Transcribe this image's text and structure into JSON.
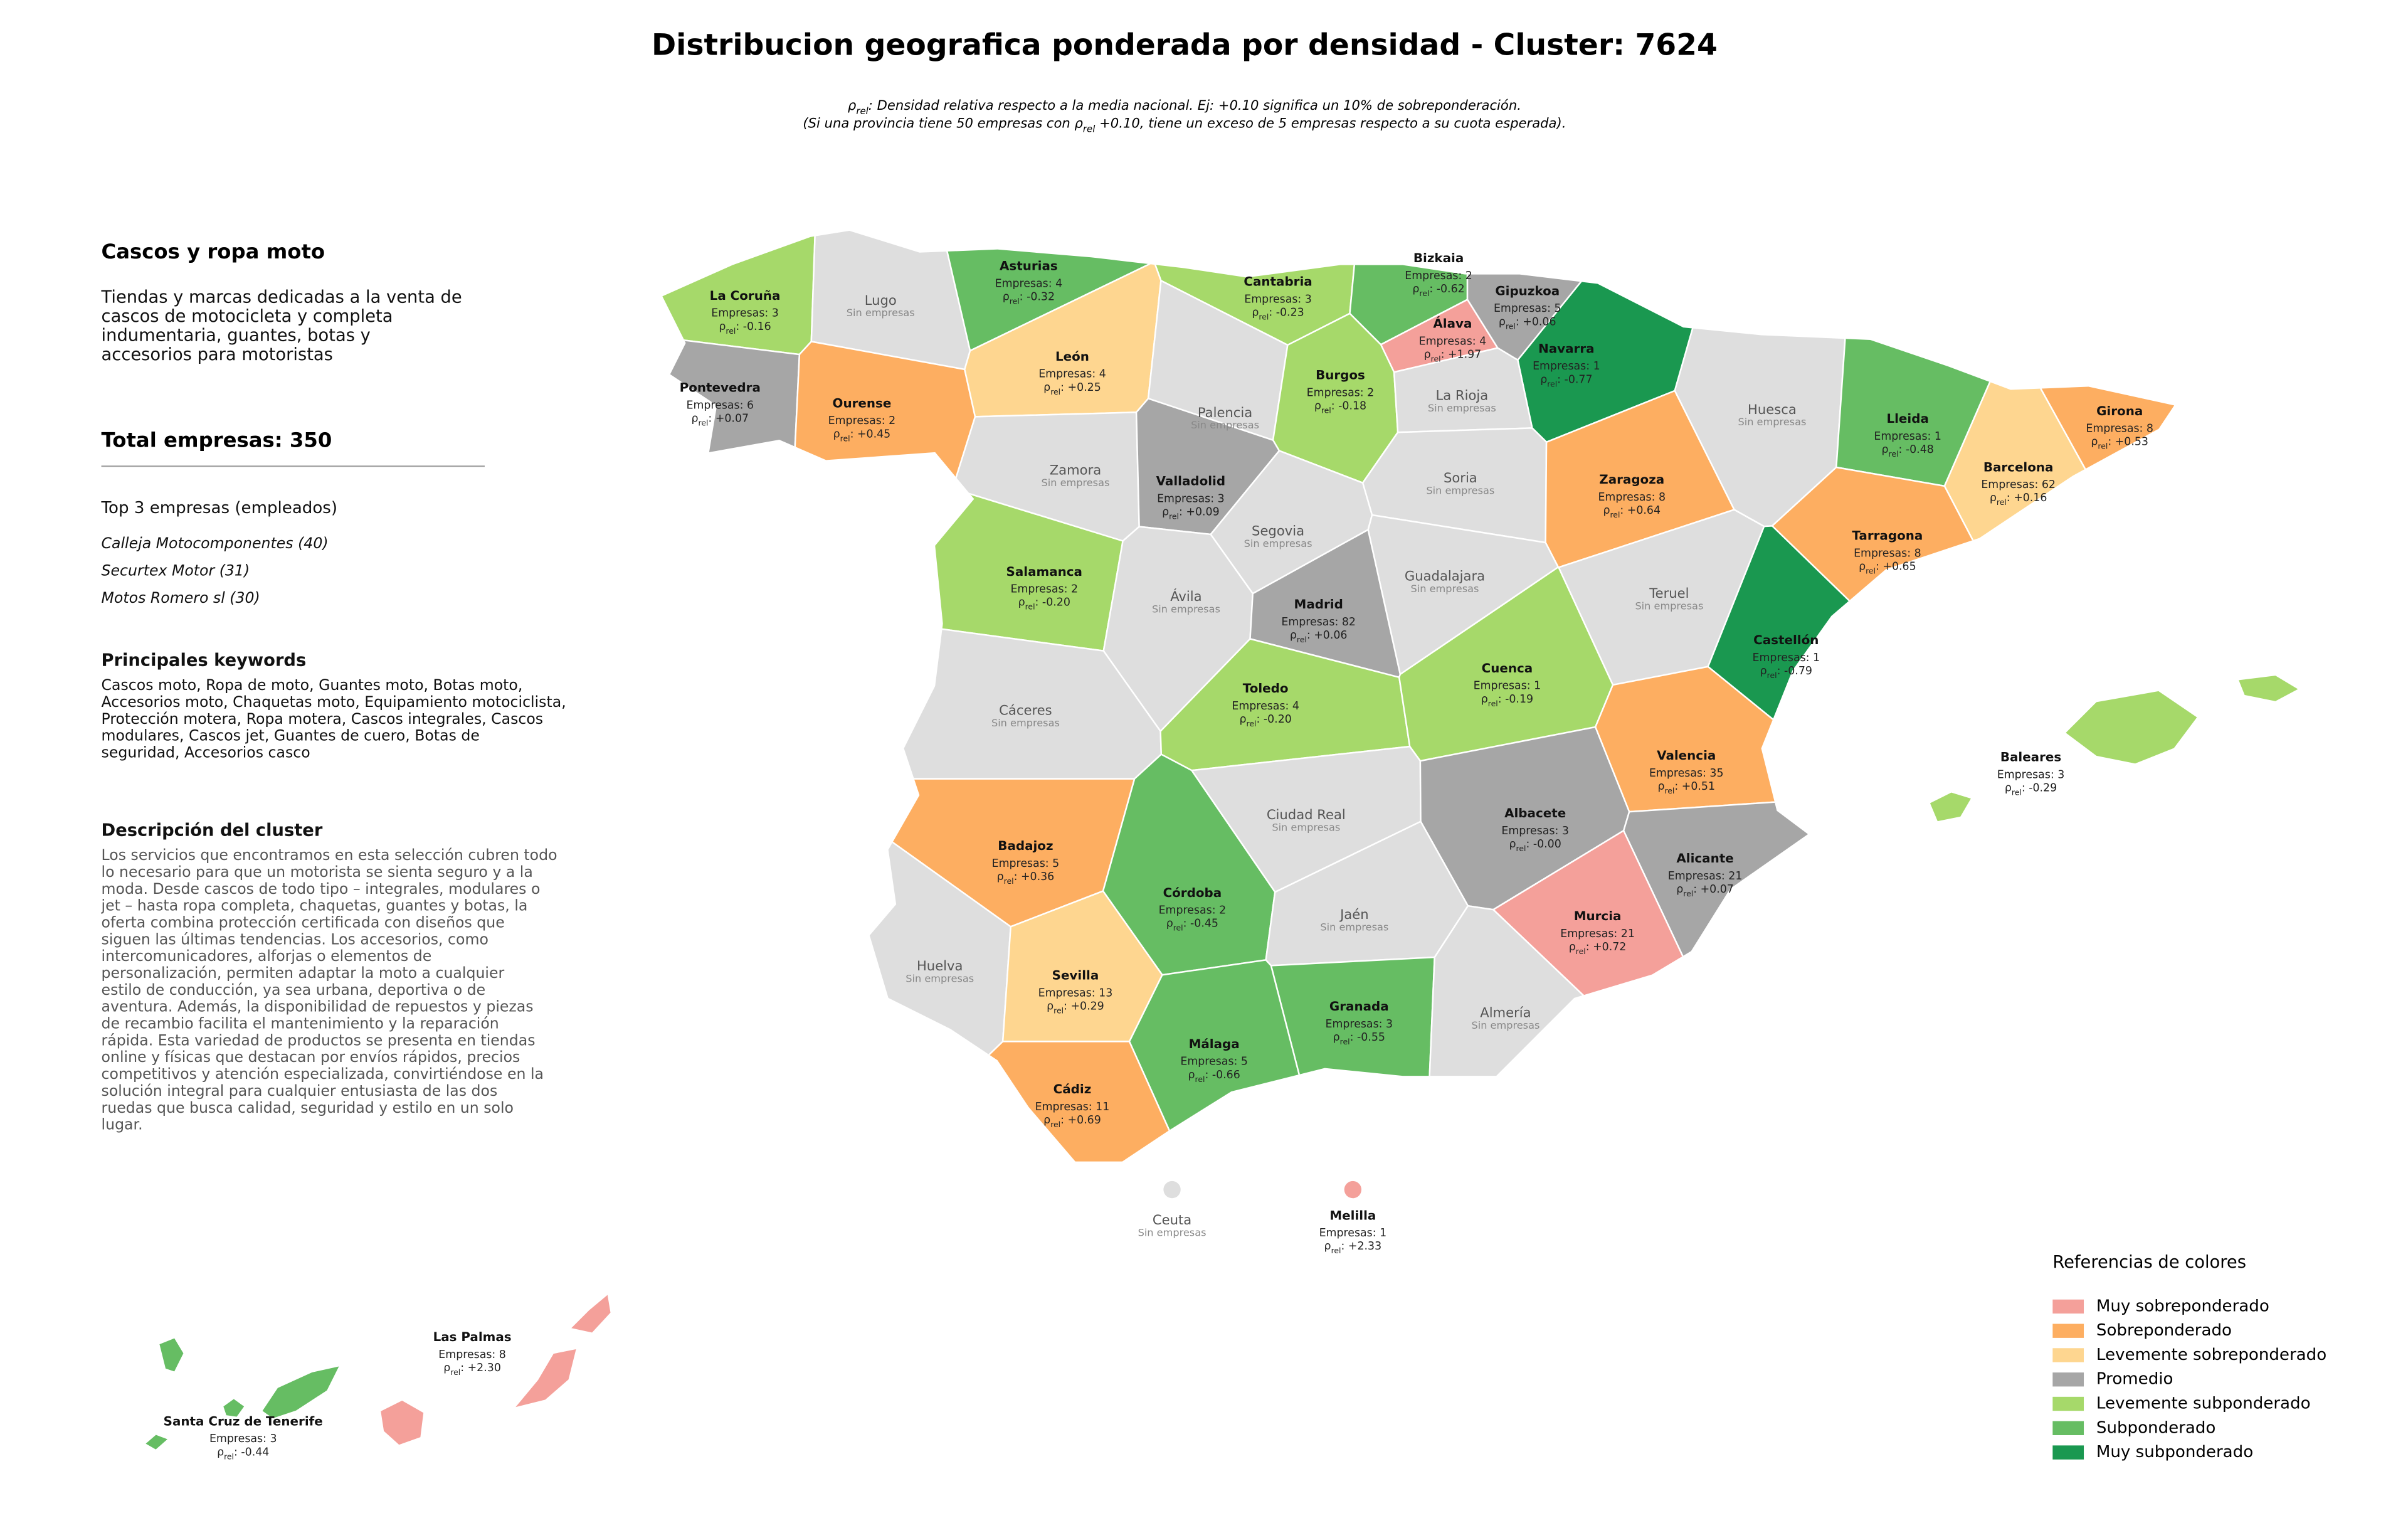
{
  "title": "Distribucion geografica ponderada por densidad - Cluster: 7624",
  "subtitle": [
    [
      {
        "text": "ρ"
      },
      {
        "text": "rel",
        "sub": true
      },
      {
        "text": ": Densidad relativa respecto a la media nacional. Ej: +0.10 significa un 10% de sobreponderación."
      }
    ],
    [
      {
        "text": "(Si una provincia tiene 50 empresas con ρ"
      },
      {
        "text": "rel",
        "sub": true
      },
      {
        "text": " +0.10, tiene un exceso de 5 empresas respecto a su cuota esperada)."
      }
    ]
  ],
  "sidebar": {
    "heading": "Cascos y ropa moto",
    "summary": [
      "Tiendas y marcas dedicadas a la venta de",
      "cascos de motocicleta y completa",
      "indumentaria, guantes, botas y",
      "accesorios para motoristas"
    ],
    "total": "Total empresas: 350",
    "top_title": "Top 3 empresas (empleados)",
    "top": [
      "Calleja Motocomponentes (40)",
      "Securtex Motor (31)",
      "Motos Romero sl (30)"
    ],
    "keywords_title": "Principales keywords",
    "keywords": [
      "Cascos moto, Ropa de moto, Guantes moto, Botas moto,",
      "Accesorios moto, Chaquetas moto, Equipamiento motociclista,",
      "Protección motera, Ropa motera, Cascos integrales, Cascos",
      "modulares, Cascos jet, Guantes de cuero, Botas de",
      "seguridad, Accesorios casco"
    ],
    "description_title": "Descripción del cluster",
    "description": [
      "Los servicios que encontramos en esta selección cubren todo",
      "lo necesario para que un motorista se sienta seguro y a la",
      "moda. Desde cascos de todo tipo – integrales, modulares o",
      "jet – hasta ropa completa, chaquetas, guantes y botas, la",
      "oferta combina protección certificada con diseños que",
      "siguen las últimas tendencias. Los accesorios, como",
      "intercomunicadores, alforjas o elementos de",
      "personalización, permiten adaptar la moto a cualquier",
      "estilo de conducción, ya sea urbana, deportiva o de",
      "aventura. Además, la disponibilidad de repuestos y piezas",
      "de recambio facilita el mantenimiento y la reparación",
      "rápida. Esta variedad de productos se presenta en tiendas",
      "online y físicas que destacan por envíos rápidos, precios",
      "competitivos y atención especializada, convirtiéndose en la",
      "solución integral para cualquier entusiasta de las dos",
      "ruedas que busca calidad, seguridad y estilo en un solo",
      "lugar."
    ]
  },
  "rho": {
    "symbol": "ρ",
    "subscript": "rel",
    "separator": ": "
  },
  "no_data_color": "#dedede",
  "provinces": [
    {
      "name": "La Coruña",
      "companies": "Empresas: 3",
      "rho": "-0.16",
      "color": "#a6d96a"
    },
    {
      "name": "Lugo",
      "status": "Sin empresas"
    },
    {
      "name": "Asturias",
      "companies": "Empresas: 4",
      "rho": "-0.32",
      "color": "#66bd63"
    },
    {
      "name": "Cantabria",
      "companies": "Empresas: 3",
      "rho": "-0.23",
      "color": "#a6d96a"
    },
    {
      "name": "Bizkaia",
      "companies": "Empresas: 2",
      "rho": "-0.62",
      "color": "#66bd63"
    },
    {
      "name": "Gipuzkoa",
      "companies": "Empresas: 5",
      "rho": "+0.06",
      "color": "#a6a6a6"
    },
    {
      "name": "Álava",
      "companies": "Empresas: 4",
      "rho": "+1.97",
      "color": "#f4a09a"
    },
    {
      "name": "Navarra",
      "companies": "Empresas: 1",
      "rho": "-0.77",
      "color": "#1a9850"
    },
    {
      "name": "Pontevedra",
      "companies": "Empresas: 6",
      "rho": "+0.07",
      "color": "#a6a6a6"
    },
    {
      "name": "Ourense",
      "companies": "Empresas: 2",
      "rho": "+0.45",
      "color": "#fdae61"
    },
    {
      "name": "León",
      "companies": "Empresas: 4",
      "rho": "+0.25",
      "color": "#fed690"
    },
    {
      "name": "Palencia",
      "status": "Sin empresas"
    },
    {
      "name": "Burgos",
      "companies": "Empresas: 2",
      "rho": "-0.18",
      "color": "#a6d96a"
    },
    {
      "name": "La Rioja",
      "status": "Sin empresas"
    },
    {
      "name": "Huesca",
      "status": "Sin empresas"
    },
    {
      "name": "Lleida",
      "companies": "Empresas: 1",
      "rho": "-0.48",
      "color": "#66bd63"
    },
    {
      "name": "Girona",
      "companies": "Empresas: 8",
      "rho": "+0.53",
      "color": "#fdae61"
    },
    {
      "name": "Barcelona",
      "companies": "Empresas: 62",
      "rho": "+0.16",
      "color": "#fed690"
    },
    {
      "name": "Zamora",
      "status": "Sin empresas"
    },
    {
      "name": "Valladolid",
      "companies": "Empresas: 3",
      "rho": "+0.09",
      "color": "#a6a6a6"
    },
    {
      "name": "Soria",
      "status": "Sin empresas"
    },
    {
      "name": "Zaragoza",
      "companies": "Empresas: 8",
      "rho": "+0.64",
      "color": "#fdae61"
    },
    {
      "name": "Tarragona",
      "companies": "Empresas: 8",
      "rho": "+0.65",
      "color": "#fdae61"
    },
    {
      "name": "Segovia",
      "status": "Sin empresas"
    },
    {
      "name": "Salamanca",
      "companies": "Empresas: 2",
      "rho": "-0.20",
      "color": "#a6d96a"
    },
    {
      "name": "Guadalajara",
      "status": "Sin empresas"
    },
    {
      "name": "Teruel",
      "status": "Sin empresas"
    },
    {
      "name": "Ávila",
      "status": "Sin empresas"
    },
    {
      "name": "Madrid",
      "companies": "Empresas: 82",
      "rho": "+0.06",
      "color": "#a6a6a6"
    },
    {
      "name": "Castellón",
      "companies": "Empresas: 1",
      "rho": "-0.79",
      "color": "#1a9850"
    },
    {
      "name": "Cáceres",
      "status": "Sin empresas"
    },
    {
      "name": "Toledo",
      "companies": "Empresas: 4",
      "rho": "-0.20",
      "color": "#a6d96a"
    },
    {
      "name": "Cuenca",
      "companies": "Empresas: 1",
      "rho": "-0.19",
      "color": "#a6d96a"
    },
    {
      "name": "Valencia",
      "companies": "Empresas: 35",
      "rho": "+0.51",
      "color": "#fdae61"
    },
    {
      "name": "Ciudad Real",
      "status": "Sin empresas"
    },
    {
      "name": "Albacete",
      "companies": "Empresas: 3",
      "rho": "-0.00",
      "color": "#a6a6a6"
    },
    {
      "name": "Badajoz",
      "companies": "Empresas: 5",
      "rho": "+0.36",
      "color": "#fdae61"
    },
    {
      "name": "Alicante",
      "companies": "Empresas: 21",
      "rho": "+0.07",
      "color": "#a6a6a6"
    },
    {
      "name": "Córdoba",
      "companies": "Empresas: 2",
      "rho": "-0.45",
      "color": "#66bd63"
    },
    {
      "name": "Jaén",
      "status": "Sin empresas"
    },
    {
      "name": "Murcia",
      "companies": "Empresas: 21",
      "rho": "+0.72",
      "color": "#f4a09a"
    },
    {
      "name": "Huelva",
      "status": "Sin empresas"
    },
    {
      "name": "Sevilla",
      "companies": "Empresas: 13",
      "rho": "+0.29",
      "color": "#fed690"
    },
    {
      "name": "Granada",
      "companies": "Empresas: 3",
      "rho": "-0.55",
      "color": "#66bd63"
    },
    {
      "name": "Almería",
      "status": "Sin empresas"
    },
    {
      "name": "Málaga",
      "companies": "Empresas: 5",
      "rho": "-0.66",
      "color": "#66bd63"
    },
    {
      "name": "Cádiz",
      "companies": "Empresas: 11",
      "rho": "+0.69",
      "color": "#fdae61"
    },
    {
      "name": "Baleares",
      "companies": "Empresas: 3",
      "rho": "-0.29",
      "color": "#a6d96a"
    },
    {
      "name": "Ceuta",
      "status": "Sin empresas"
    },
    {
      "name": "Melilla",
      "companies": "Empresas: 1",
      "rho": "+2.33",
      "color": "#f4a09a"
    },
    {
      "name": "Las Palmas",
      "companies": "Empresas: 8",
      "rho": "+2.30",
      "color": "#f4a09a"
    },
    {
      "name": "Santa Cruz de Tenerife",
      "companies": "Empresas: 3",
      "rho": "-0.44",
      "color": "#66bd63"
    }
  ],
  "legend": {
    "title": "Referencias de colores",
    "items": [
      {
        "name": "Muy sobreponderado",
        "color": "#f4a09a"
      },
      {
        "name": "Sobreponderado",
        "color": "#fdae61"
      },
      {
        "name": "Levemente sobreponderado",
        "color": "#fed690"
      },
      {
        "name": "Promedio",
        "color": "#a6a6a6"
      },
      {
        "name": "Levemente subponderado",
        "color": "#a6d96a"
      },
      {
        "name": "Subponderado",
        "color": "#66bd63"
      },
      {
        "name": "Muy subponderado",
        "color": "#1a9850"
      }
    ]
  }
}
